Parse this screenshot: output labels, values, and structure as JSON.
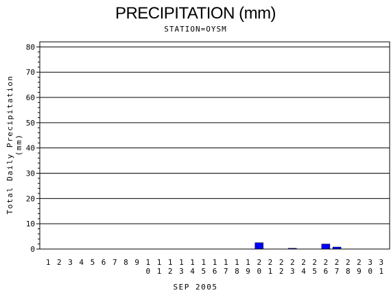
{
  "chart_data": {
    "type": "bar",
    "title": "PRECIPITATION (mm)",
    "subtitle": "STATION=OYSM",
    "xlabel": "SEP 2005",
    "ylabel": "Total Daily Precipitation (mm)",
    "ylim": [
      0,
      82
    ],
    "yticks": [
      0,
      10,
      20,
      30,
      40,
      50,
      60,
      70,
      80
    ],
    "grid": true,
    "categories": [
      "1",
      "2",
      "3",
      "4",
      "5",
      "6",
      "7",
      "8",
      "9",
      "10",
      "11",
      "12",
      "13",
      "14",
      "15",
      "16",
      "17",
      "18",
      "19",
      "20",
      "21",
      "22",
      "23",
      "24",
      "25",
      "26",
      "27",
      "28",
      "29",
      "30",
      "31"
    ],
    "values": [
      0,
      0,
      0,
      0,
      0,
      0,
      0,
      0,
      0,
      0,
      0,
      0,
      0,
      0,
      0,
      0,
      0,
      0,
      0,
      2.5,
      0,
      0,
      0.3,
      0,
      0,
      2.0,
      0.8,
      0,
      0,
      0,
      0
    ],
    "bar_color": "#0000ff"
  }
}
